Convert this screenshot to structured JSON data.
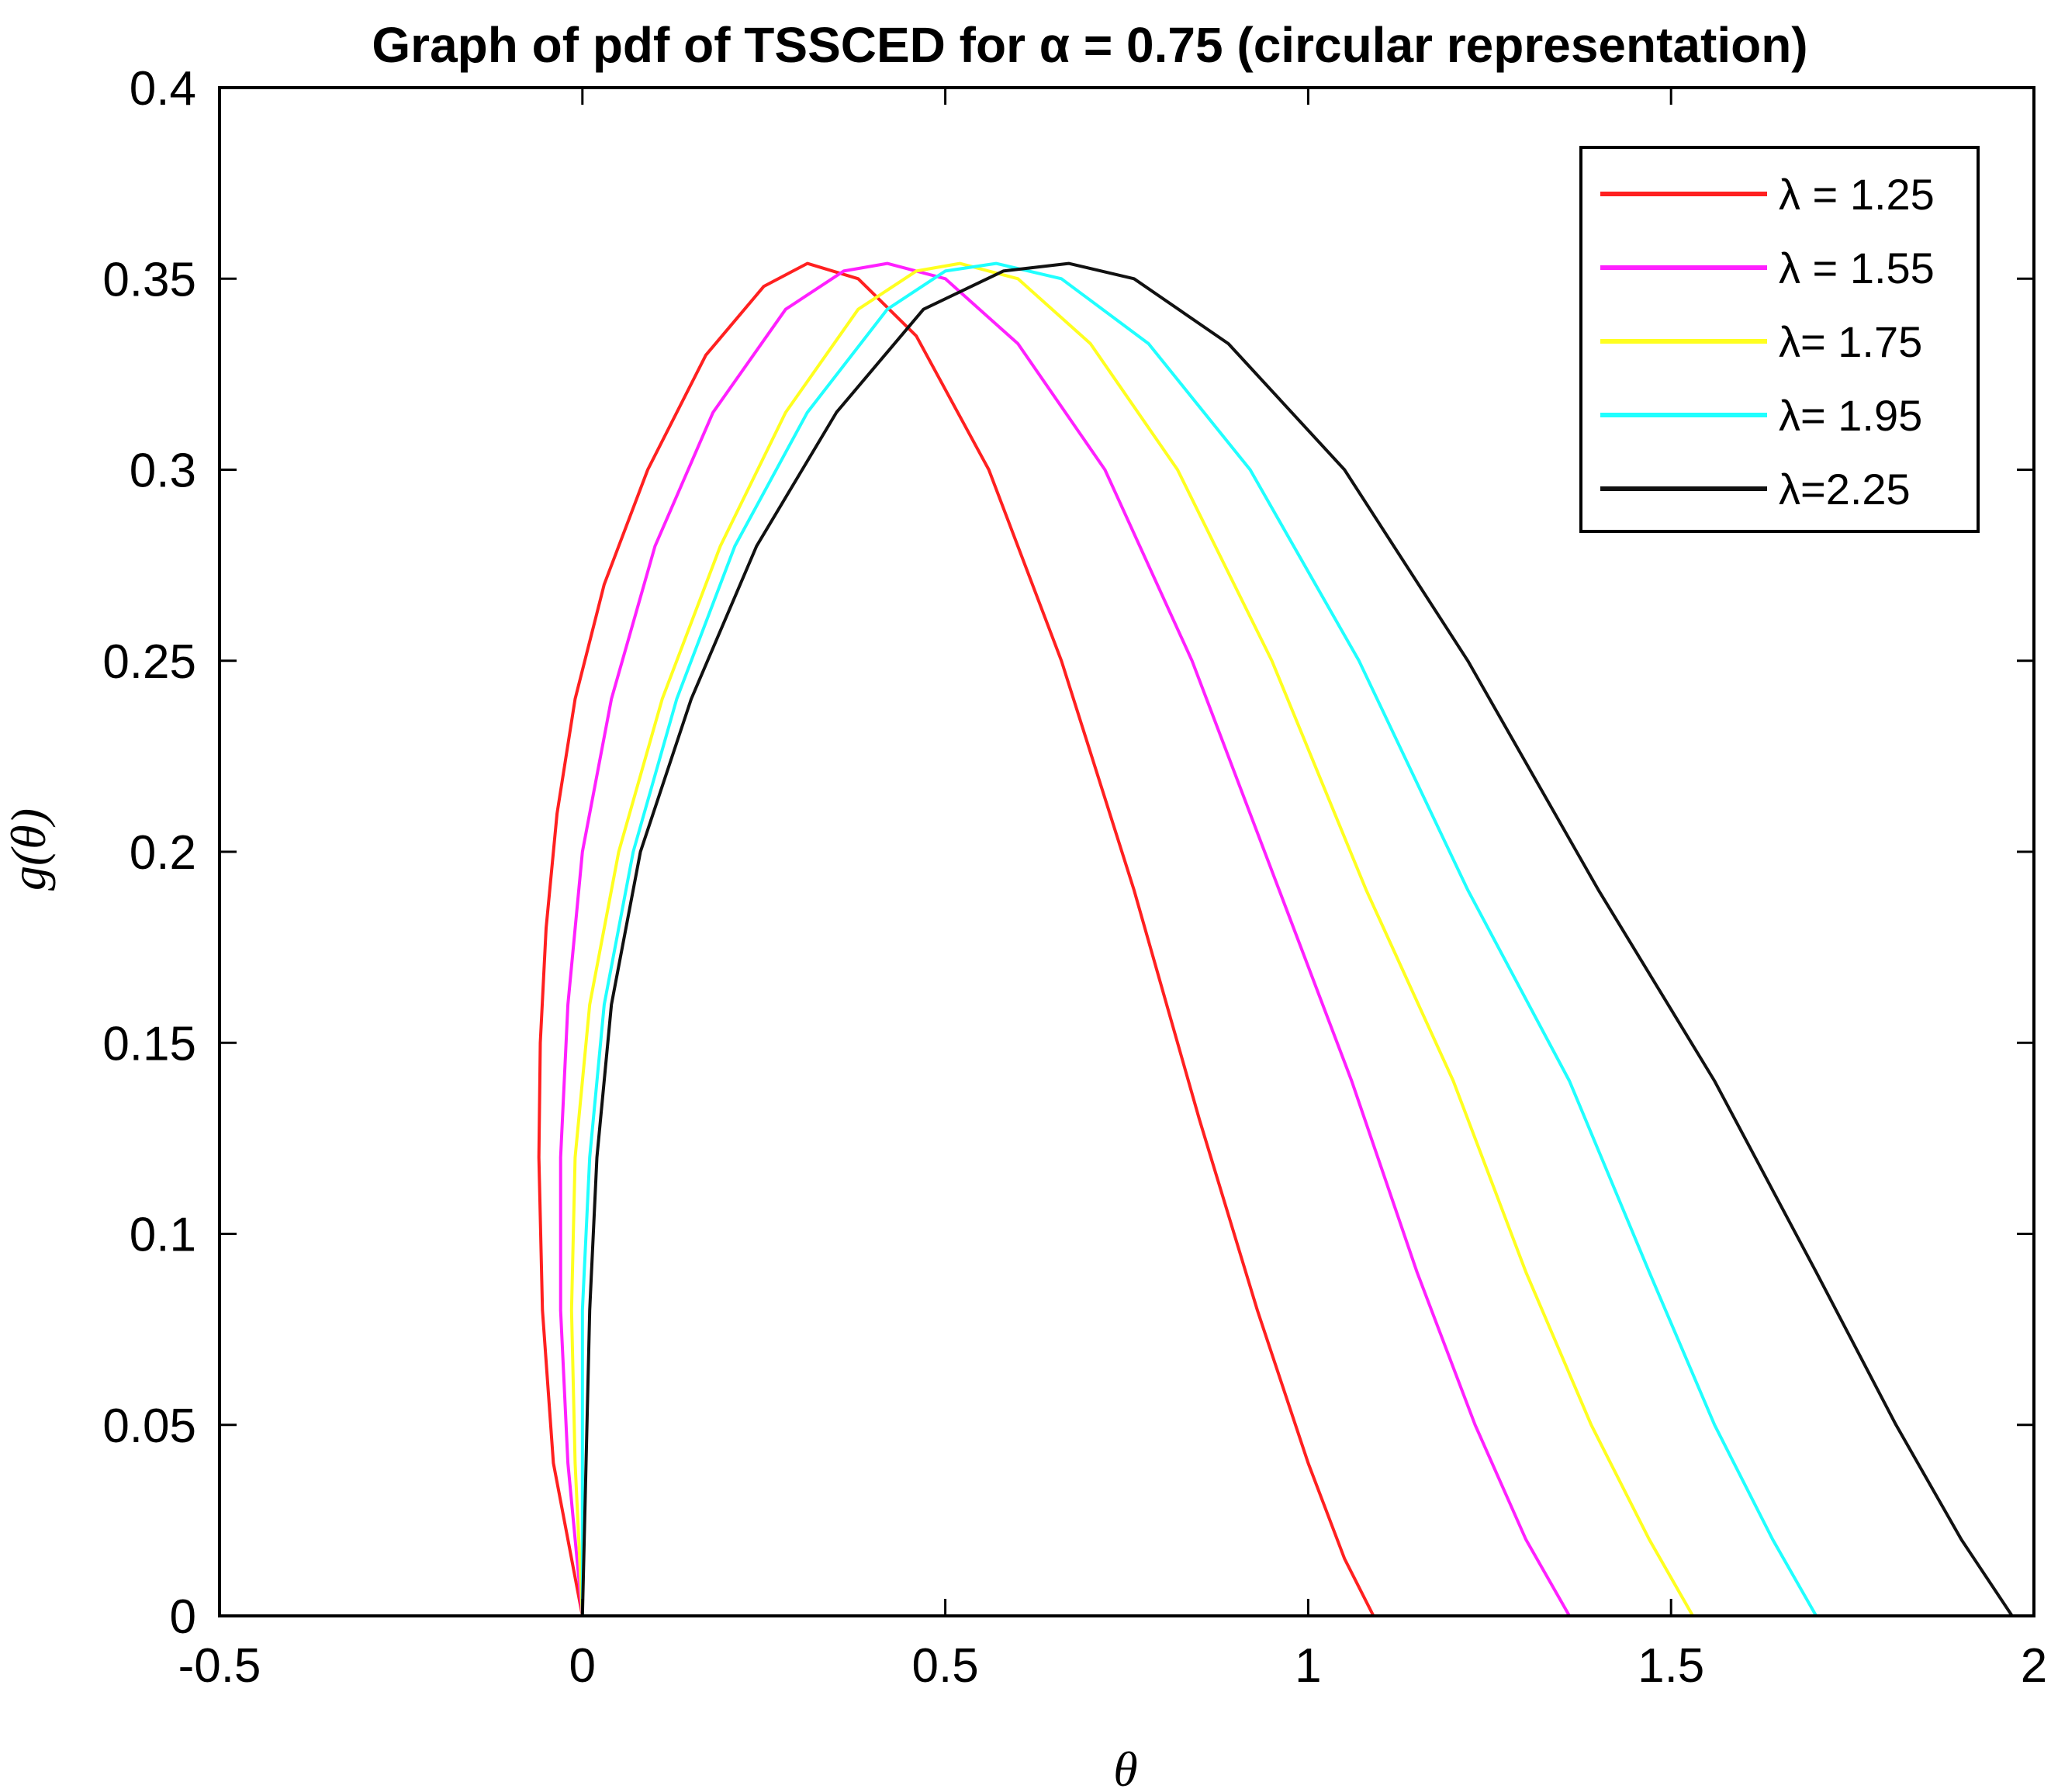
{
  "chart_data": {
    "type": "line",
    "title": "Graph of pdf of TSSCED  for α = 0.75 (circular representation)",
    "xlabel": "θ",
    "ylabel": "g(θ)",
    "xlim": [
      -0.5,
      2
    ],
    "ylim": [
      0,
      0.4
    ],
    "xticks": [
      -0.5,
      0,
      0.5,
      1,
      1.5,
      2
    ],
    "xtick_labels": [
      "-0.5",
      "0",
      "0.5",
      "1",
      "1.5",
      "2"
    ],
    "yticks": [
      0,
      0.05,
      0.1,
      0.15,
      0.2,
      0.25,
      0.3,
      0.35,
      0.4
    ],
    "ytick_labels": [
      "0",
      "0.05",
      "0.1",
      "0.15",
      "0.2",
      "0.25",
      "0.3",
      "0.35",
      "0.4"
    ],
    "grid": false,
    "legend_position": "top-right",
    "series": [
      {
        "name": "λ = 1.25",
        "color": "#ff2020",
        "x": [
          0.0,
          -0.04,
          -0.055,
          -0.06,
          -0.058,
          -0.05,
          -0.035,
          -0.01,
          0.03,
          0.09,
          0.17,
          0.25,
          0.31,
          0.38,
          0.46,
          0.56,
          0.66,
          0.76,
          0.85,
          0.93,
          1.0,
          1.05,
          1.09
        ],
        "y": [
          0.0,
          0.04,
          0.08,
          0.12,
          0.15,
          0.18,
          0.21,
          0.24,
          0.27,
          0.3,
          0.33,
          0.348,
          0.354,
          0.35,
          0.335,
          0.3,
          0.25,
          0.19,
          0.13,
          0.08,
          0.04,
          0.015,
          0.0
        ]
      },
      {
        "name": "λ = 1.55",
        "color": "#ff20ff",
        "x": [
          0.0,
          -0.02,
          -0.03,
          -0.03,
          -0.02,
          0.0,
          0.04,
          0.1,
          0.18,
          0.28,
          0.36,
          0.42,
          0.5,
          0.6,
          0.72,
          0.84,
          0.96,
          1.06,
          1.15,
          1.23,
          1.3,
          1.36
        ],
        "y": [
          0.0,
          0.04,
          0.08,
          0.12,
          0.16,
          0.2,
          0.24,
          0.28,
          0.315,
          0.342,
          0.352,
          0.354,
          0.35,
          0.333,
          0.3,
          0.25,
          0.19,
          0.14,
          0.09,
          0.05,
          0.02,
          0.0
        ]
      },
      {
        "name": "λ= 1.75",
        "color": "#ffff20",
        "x": [
          0.0,
          -0.01,
          -0.015,
          -0.01,
          0.01,
          0.05,
          0.11,
          0.19,
          0.28,
          0.38,
          0.46,
          0.52,
          0.6,
          0.7,
          0.82,
          0.95,
          1.08,
          1.2,
          1.3,
          1.39,
          1.47,
          1.53
        ],
        "y": [
          0.0,
          0.04,
          0.08,
          0.12,
          0.16,
          0.2,
          0.24,
          0.28,
          0.315,
          0.342,
          0.352,
          0.354,
          0.35,
          0.333,
          0.3,
          0.25,
          0.19,
          0.14,
          0.09,
          0.05,
          0.02,
          0.0
        ]
      },
      {
        "name": "λ= 1.95",
        "color": "#20ffff",
        "x": [
          0.0,
          0.0,
          0.0,
          0.01,
          0.03,
          0.07,
          0.13,
          0.21,
          0.31,
          0.42,
          0.5,
          0.57,
          0.66,
          0.78,
          0.92,
          1.07,
          1.22,
          1.36,
          1.47,
          1.56,
          1.64,
          1.7
        ],
        "y": [
          0.0,
          0.04,
          0.08,
          0.12,
          0.16,
          0.2,
          0.24,
          0.28,
          0.315,
          0.342,
          0.352,
          0.354,
          0.35,
          0.333,
          0.3,
          0.25,
          0.19,
          0.14,
          0.09,
          0.05,
          0.02,
          0.0
        ]
      },
      {
        "name": "λ=2.25",
        "color": "#111111",
        "x": [
          0.0,
          0.005,
          0.01,
          0.02,
          0.04,
          0.08,
          0.15,
          0.24,
          0.35,
          0.47,
          0.58,
          0.67,
          0.76,
          0.89,
          1.05,
          1.22,
          1.4,
          1.56,
          1.7,
          1.81,
          1.9,
          1.97
        ],
        "y": [
          0.0,
          0.04,
          0.08,
          0.12,
          0.16,
          0.2,
          0.24,
          0.28,
          0.315,
          0.342,
          0.352,
          0.354,
          0.35,
          0.333,
          0.3,
          0.25,
          0.19,
          0.14,
          0.09,
          0.05,
          0.02,
          0.0
        ]
      }
    ]
  }
}
